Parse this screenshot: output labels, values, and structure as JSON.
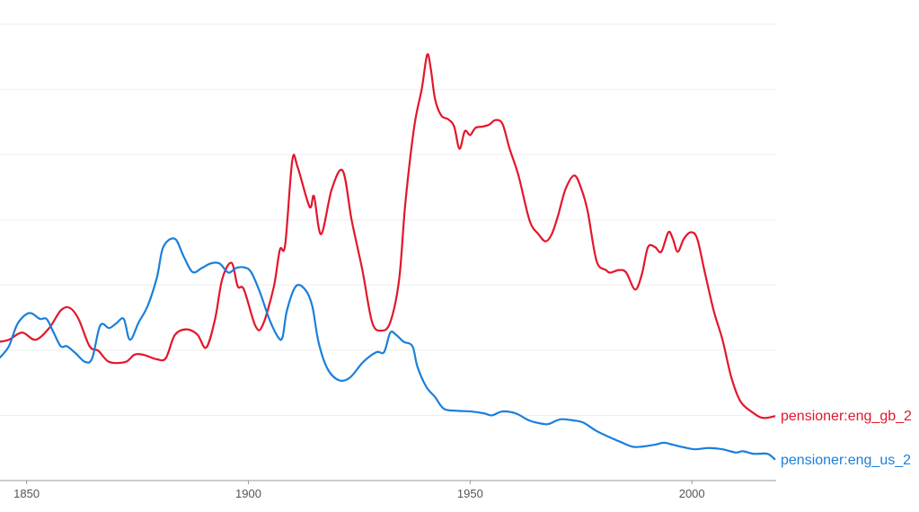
{
  "chart_data": {
    "type": "line",
    "title": "",
    "xlabel": "",
    "ylabel": "",
    "xlim": [
      1844,
      2019
    ],
    "ylim": [
      0,
      7
    ],
    "grid": true,
    "legend_placement": "right, at line ends",
    "x_ticks": [
      "1850",
      "1900",
      "1950",
      "2000"
    ],
    "series": [
      {
        "name": "pensioner:eng_gb_2",
        "color": "#e3162b",
        "points": [
          [
            1843.9,
            2.13
          ],
          [
            1846.0,
            2.16
          ],
          [
            1849.0,
            2.27
          ],
          [
            1852.0,
            2.16
          ],
          [
            1855.1,
            2.34
          ],
          [
            1857.7,
            2.61
          ],
          [
            1859.7,
            2.65
          ],
          [
            1861.7,
            2.48
          ],
          [
            1864.2,
            2.06
          ],
          [
            1866.2,
            1.99
          ],
          [
            1868.6,
            1.82
          ],
          [
            1872.3,
            1.82
          ],
          [
            1874.3,
            1.93
          ],
          [
            1876.3,
            1.93
          ],
          [
            1879.4,
            1.86
          ],
          [
            1881.4,
            1.88
          ],
          [
            1883.4,
            2.23
          ],
          [
            1886.0,
            2.32
          ],
          [
            1888.5,
            2.24
          ],
          [
            1890.5,
            2.04
          ],
          [
            1892.5,
            2.48
          ],
          [
            1894.1,
            3.09
          ],
          [
            1896.2,
            3.34
          ],
          [
            1897.6,
            2.98
          ],
          [
            1899.0,
            2.93
          ],
          [
            1901.6,
            2.37
          ],
          [
            1903.2,
            2.38
          ],
          [
            1905.7,
            2.96
          ],
          [
            1907.1,
            3.54
          ],
          [
            1908.3,
            3.62
          ],
          [
            1909.9,
            4.91
          ],
          [
            1911.1,
            4.81
          ],
          [
            1913.8,
            4.2
          ],
          [
            1914.8,
            4.36
          ],
          [
            1916.4,
            3.78
          ],
          [
            1918.8,
            4.47
          ],
          [
            1921.3,
            4.75
          ],
          [
            1923.3,
            3.99
          ],
          [
            1925.7,
            3.23
          ],
          [
            1927.9,
            2.43
          ],
          [
            1930.0,
            2.3
          ],
          [
            1932.0,
            2.43
          ],
          [
            1934.0,
            3.09
          ],
          [
            1935.4,
            4.26
          ],
          [
            1937.4,
            5.43
          ],
          [
            1939.1,
            6.01
          ],
          [
            1940.3,
            6.53
          ],
          [
            1941.1,
            6.33
          ],
          [
            1942.1,
            5.85
          ],
          [
            1943.5,
            5.6
          ],
          [
            1945.1,
            5.54
          ],
          [
            1946.4,
            5.43
          ],
          [
            1947.6,
            5.09
          ],
          [
            1948.8,
            5.36
          ],
          [
            1950.0,
            5.3
          ],
          [
            1951.2,
            5.41
          ],
          [
            1952.8,
            5.43
          ],
          [
            1954.3,
            5.46
          ],
          [
            1955.7,
            5.53
          ],
          [
            1957.3,
            5.47
          ],
          [
            1958.9,
            5.09
          ],
          [
            1960.9,
            4.68
          ],
          [
            1963.4,
            3.99
          ],
          [
            1965.4,
            3.78
          ],
          [
            1967.0,
            3.67
          ],
          [
            1968.4,
            3.78
          ],
          [
            1969.8,
            4.06
          ],
          [
            1971.5,
            4.47
          ],
          [
            1973.5,
            4.68
          ],
          [
            1975.1,
            4.47
          ],
          [
            1976.5,
            4.13
          ],
          [
            1978.5,
            3.37
          ],
          [
            1980.6,
            3.23
          ],
          [
            1981.6,
            3.19
          ],
          [
            1983.6,
            3.23
          ],
          [
            1985.2,
            3.19
          ],
          [
            1987.2,
            2.93
          ],
          [
            1988.7,
            3.16
          ],
          [
            1990.1,
            3.58
          ],
          [
            1991.7,
            3.58
          ],
          [
            1993.1,
            3.51
          ],
          [
            1994.7,
            3.81
          ],
          [
            1995.7,
            3.71
          ],
          [
            1996.8,
            3.51
          ],
          [
            1998.2,
            3.71
          ],
          [
            1999.8,
            3.81
          ],
          [
            2001.2,
            3.71
          ],
          [
            2002.8,
            3.23
          ],
          [
            2004.9,
            2.61
          ],
          [
            2006.9,
            2.16
          ],
          [
            2008.9,
            1.58
          ],
          [
            2011.0,
            1.21
          ],
          [
            2014.0,
            1.03
          ],
          [
            2016.1,
            0.96
          ],
          [
            2018.8,
            0.99
          ]
        ]
      },
      {
        "name": "pensioner:eng_us_2",
        "color": "#1a7fdb",
        "points": [
          [
            1843.9,
            1.88
          ],
          [
            1846.0,
            2.06
          ],
          [
            1848.0,
            2.41
          ],
          [
            1850.6,
            2.57
          ],
          [
            1853.0,
            2.48
          ],
          [
            1854.5,
            2.48
          ],
          [
            1856.1,
            2.27
          ],
          [
            1857.7,
            2.06
          ],
          [
            1859.1,
            2.06
          ],
          [
            1861.1,
            1.95
          ],
          [
            1863.2,
            1.82
          ],
          [
            1864.8,
            1.88
          ],
          [
            1866.6,
            2.38
          ],
          [
            1868.6,
            2.34
          ],
          [
            1870.2,
            2.41
          ],
          [
            1871.9,
            2.48
          ],
          [
            1873.3,
            2.16
          ],
          [
            1875.3,
            2.43
          ],
          [
            1877.3,
            2.68
          ],
          [
            1879.4,
            3.12
          ],
          [
            1880.8,
            3.58
          ],
          [
            1883.4,
            3.71
          ],
          [
            1885.4,
            3.44
          ],
          [
            1887.4,
            3.2
          ],
          [
            1889.5,
            3.26
          ],
          [
            1891.5,
            3.33
          ],
          [
            1893.5,
            3.33
          ],
          [
            1895.5,
            3.19
          ],
          [
            1897.2,
            3.26
          ],
          [
            1899.0,
            3.27
          ],
          [
            1900.6,
            3.2
          ],
          [
            1902.6,
            2.89
          ],
          [
            1904.7,
            2.48
          ],
          [
            1906.7,
            2.2
          ],
          [
            1907.7,
            2.2
          ],
          [
            1908.7,
            2.61
          ],
          [
            1910.7,
            2.98
          ],
          [
            1912.8,
            2.93
          ],
          [
            1914.4,
            2.68
          ],
          [
            1915.8,
            2.13
          ],
          [
            1917.8,
            1.72
          ],
          [
            1920.4,
            1.54
          ],
          [
            1922.9,
            1.58
          ],
          [
            1925.9,
            1.82
          ],
          [
            1928.9,
            1.97
          ],
          [
            1930.6,
            1.97
          ],
          [
            1932.0,
            2.27
          ],
          [
            1933.4,
            2.23
          ],
          [
            1935.0,
            2.13
          ],
          [
            1937.0,
            2.06
          ],
          [
            1938.1,
            1.75
          ],
          [
            1940.1,
            1.44
          ],
          [
            1942.1,
            1.28
          ],
          [
            1944.1,
            1.1
          ],
          [
            1947.2,
            1.07
          ],
          [
            1950.2,
            1.06
          ],
          [
            1953.2,
            1.03
          ],
          [
            1954.9,
            1.0
          ],
          [
            1957.3,
            1.06
          ],
          [
            1960.3,
            1.03
          ],
          [
            1963.4,
            0.92
          ],
          [
            1966.4,
            0.87
          ],
          [
            1967.8,
            0.87
          ],
          [
            1970.4,
            0.94
          ],
          [
            1973.5,
            0.92
          ],
          [
            1975.5,
            0.89
          ],
          [
            1978.5,
            0.76
          ],
          [
            1981.6,
            0.66
          ],
          [
            1984.0,
            0.59
          ],
          [
            1986.6,
            0.52
          ],
          [
            1988.7,
            0.52
          ],
          [
            1991.7,
            0.55
          ],
          [
            1993.7,
            0.58
          ],
          [
            1995.7,
            0.55
          ],
          [
            1998.2,
            0.51
          ],
          [
            2000.8,
            0.48
          ],
          [
            2003.8,
            0.5
          ],
          [
            2006.9,
            0.48
          ],
          [
            2009.9,
            0.43
          ],
          [
            2011.5,
            0.45
          ],
          [
            2014.0,
            0.41
          ],
          [
            2017.0,
            0.41
          ],
          [
            2018.8,
            0.32
          ]
        ]
      }
    ]
  }
}
